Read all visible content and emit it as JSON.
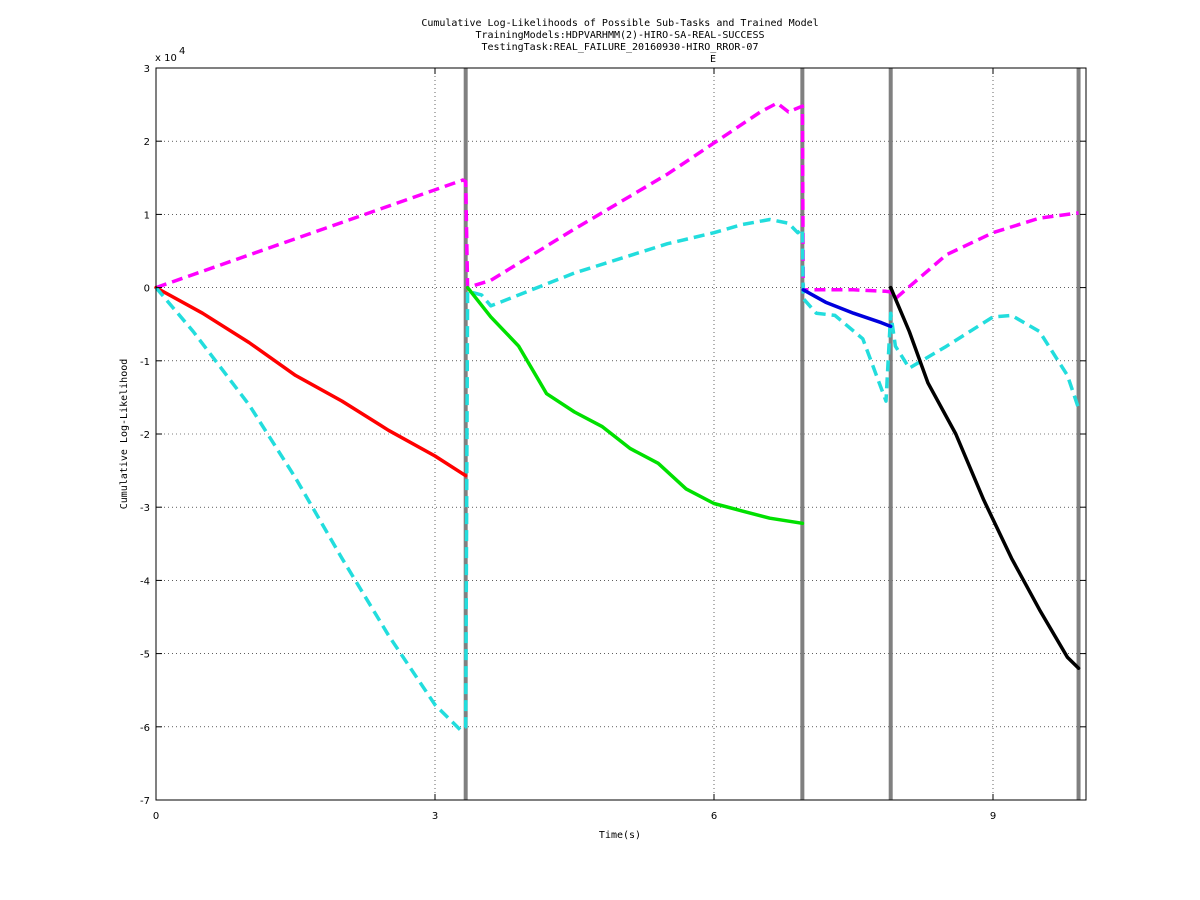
{
  "chart_data": {
    "type": "line",
    "title": "Cumulative Log-Likelihoods of Possible Sub-Tasks and Trained Model",
    "subtitle_1": "TrainingModels:HDPVARHMM(2)-HIRO-SA-REAL-SUCCESS",
    "subtitle_2": "TestingTask:REAL_FAILURE_20160930-HIRO_RROR-07",
    "xlabel": "Time(s)",
    "ylabel": "Cumulative Log-Likelihood",
    "y_exponent": "x 10",
    "y_exponent_power": "4",
    "marker_label": "E",
    "xlim": [
      0,
      10
    ],
    "ylim": [
      -70000,
      30000
    ],
    "x_ticks": [
      0,
      3,
      6,
      9
    ],
    "x_tick_labels": [
      "0",
      "3",
      "6",
      "9"
    ],
    "y_ticks": [
      -70000,
      -60000,
      -50000,
      -40000,
      -30000,
      -20000,
      -10000,
      0,
      10000,
      20000,
      30000
    ],
    "y_tick_labels": [
      "-7",
      "-6",
      "-5",
      "-4",
      "-3",
      "-2",
      "-1",
      "0",
      "1",
      "2",
      "3"
    ],
    "grid": true,
    "vertical_markers": [
      3.33,
      6.95,
      7.9,
      9.92
    ],
    "series": [
      {
        "color": "#ff00ff",
        "style": "dashed",
        "x": [
          0,
          3.3,
          3.33,
          3.35,
          3.6,
          4.5,
          5.5,
          6.5,
          6.68,
          6.8,
          6.95,
          6.96,
          7.5,
          7.85,
          7.9,
          7.95,
          8.5,
          9.0,
          9.5,
          9.92
        ],
        "y": [
          0,
          14700,
          14500,
          0,
          1000,
          8000,
          15500,
          24000,
          25200,
          24000,
          24800,
          -300,
          -300,
          -500,
          -600,
          -1500,
          4500,
          7500,
          9500,
          10200
        ]
      },
      {
        "color": "#ff0000",
        "style": "solid",
        "x": [
          0,
          0.5,
          1.0,
          1.5,
          2.0,
          2.5,
          3.0,
          3.33
        ],
        "y": [
          0,
          -3500,
          -7500,
          -12000,
          -15500,
          -19500,
          -23000,
          -25700
        ]
      },
      {
        "color": "#22dddd",
        "style": "dashed",
        "x": [
          0,
          0.4,
          1.0,
          1.5,
          2.0,
          2.5,
          3.0,
          3.28,
          3.33,
          3.35,
          3.5,
          3.6,
          3.8,
          4.5,
          5.5,
          6.0,
          6.3,
          6.6,
          6.8,
          6.9,
          6.95,
          6.96,
          7.1,
          7.3,
          7.6,
          7.85,
          7.9,
          7.95,
          8.1,
          8.5,
          9.0,
          9.2,
          9.5,
          9.8,
          9.92
        ],
        "y": [
          0,
          -6000,
          -16000,
          -26000,
          -37000,
          -47500,
          -57000,
          -60500,
          -60000,
          -500,
          -1000,
          -2500,
          -1500,
          2000,
          6000,
          7500,
          8600,
          9300,
          8800,
          7500,
          8000,
          -1500,
          -3500,
          -3800,
          -7000,
          -15500,
          -3500,
          -8000,
          -11000,
          -8000,
          -4000,
          -3800,
          -6000,
          -12000,
          -16500
        ]
      },
      {
        "color": "#00e000",
        "style": "solid",
        "x": [
          3.35,
          3.6,
          3.9,
          4.2,
          4.5,
          4.8,
          5.1,
          5.4,
          5.7,
          6.0,
          6.3,
          6.6,
          6.95
        ],
        "y": [
          0,
          -4000,
          -8000,
          -14500,
          -17000,
          -19000,
          -22000,
          -24000,
          -27500,
          -29500,
          -30500,
          -31500,
          -32200
        ]
      },
      {
        "color": "#0000dd",
        "style": "solid",
        "x": [
          6.96,
          7.2,
          7.5,
          7.8,
          7.9
        ],
        "y": [
          -300,
          -2000,
          -3500,
          -4800,
          -5300
        ]
      },
      {
        "color": "#000000",
        "style": "solid",
        "x": [
          7.9,
          8.1,
          8.3,
          8.6,
          8.9,
          9.2,
          9.5,
          9.8,
          9.92
        ],
        "y": [
          0,
          -6000,
          -13000,
          -20000,
          -29000,
          -37000,
          -44000,
          -50500,
          -52000
        ]
      }
    ]
  }
}
